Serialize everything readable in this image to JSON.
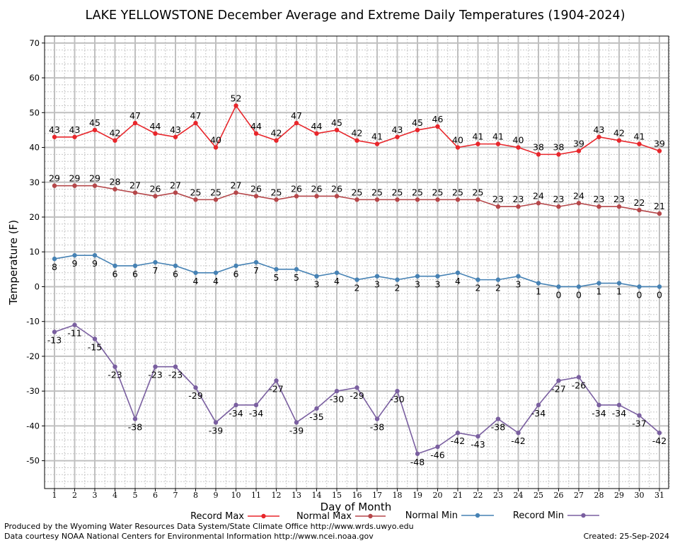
{
  "chart_data": {
    "type": "line",
    "title": "LAKE YELLOWSTONE December Average and Extreme Daily Temperatures (1904-2024)",
    "xlabel": "Day of Month",
    "ylabel": "Temperature (F)",
    "ylim": [
      -58,
      72
    ],
    "yticks": [
      70,
      60,
      50,
      40,
      30,
      20,
      10,
      0,
      -10,
      -20,
      -30,
      -40,
      -50
    ],
    "x": [
      1,
      2,
      3,
      4,
      5,
      6,
      7,
      8,
      9,
      10,
      11,
      12,
      13,
      14,
      15,
      16,
      17,
      18,
      19,
      20,
      21,
      22,
      23,
      24,
      25,
      26,
      27,
      28,
      29,
      30,
      31
    ],
    "grid": true,
    "legend_placement": "bottom",
    "series": [
      {
        "name": "Record Max",
        "color": "#e8262b",
        "label_position": "above",
        "values": [
          43,
          43,
          45,
          42,
          47,
          44,
          43,
          47,
          40,
          52,
          44,
          42,
          47,
          44,
          45,
          42,
          41,
          43,
          45,
          46,
          40,
          41,
          41,
          40,
          38,
          38,
          39,
          43,
          42,
          41,
          39
        ]
      },
      {
        "name": "Normal Max",
        "color": "#b5474a",
        "label_position": "above",
        "values": [
          29,
          29,
          29,
          28,
          27,
          26,
          27,
          25,
          25,
          27,
          26,
          25,
          26,
          26,
          26,
          25,
          25,
          25,
          25,
          25,
          25,
          25,
          23,
          23,
          24,
          23,
          24,
          23,
          23,
          22,
          21
        ]
      },
      {
        "name": "Normal Min",
        "color": "#4682b4",
        "label_position": "below",
        "values": [
          8,
          9,
          9,
          6,
          6,
          7,
          6,
          4,
          4,
          6,
          7,
          5,
          5,
          3,
          4,
          2,
          3,
          2,
          3,
          3,
          4,
          2,
          2,
          3,
          1,
          0,
          0,
          1,
          1,
          0,
          0
        ]
      },
      {
        "name": "Record Min",
        "color": "#7a5fa0",
        "label_position": "below",
        "values": [
          -13,
          -11,
          -15,
          -23,
          -38,
          -23,
          -23,
          -29,
          -39,
          -34,
          -34,
          -27,
          -39,
          -35,
          -30,
          -29,
          -38,
          -30,
          -48,
          -46,
          -42,
          -43,
          -38,
          -42,
          -34,
          -27,
          -26,
          -34,
          -34,
          -37,
          -42
        ]
      }
    ]
  },
  "footer": {
    "producer": "Produced by the Wyoming Water Resources Data System/State Climate Office http://www.wrds.uwyo.edu",
    "courtesy": "Data courtesy NOAA National Centers for Environmental Information http://www.ncei.noaa.gov",
    "created": "Created:  25-Sep-2024"
  }
}
